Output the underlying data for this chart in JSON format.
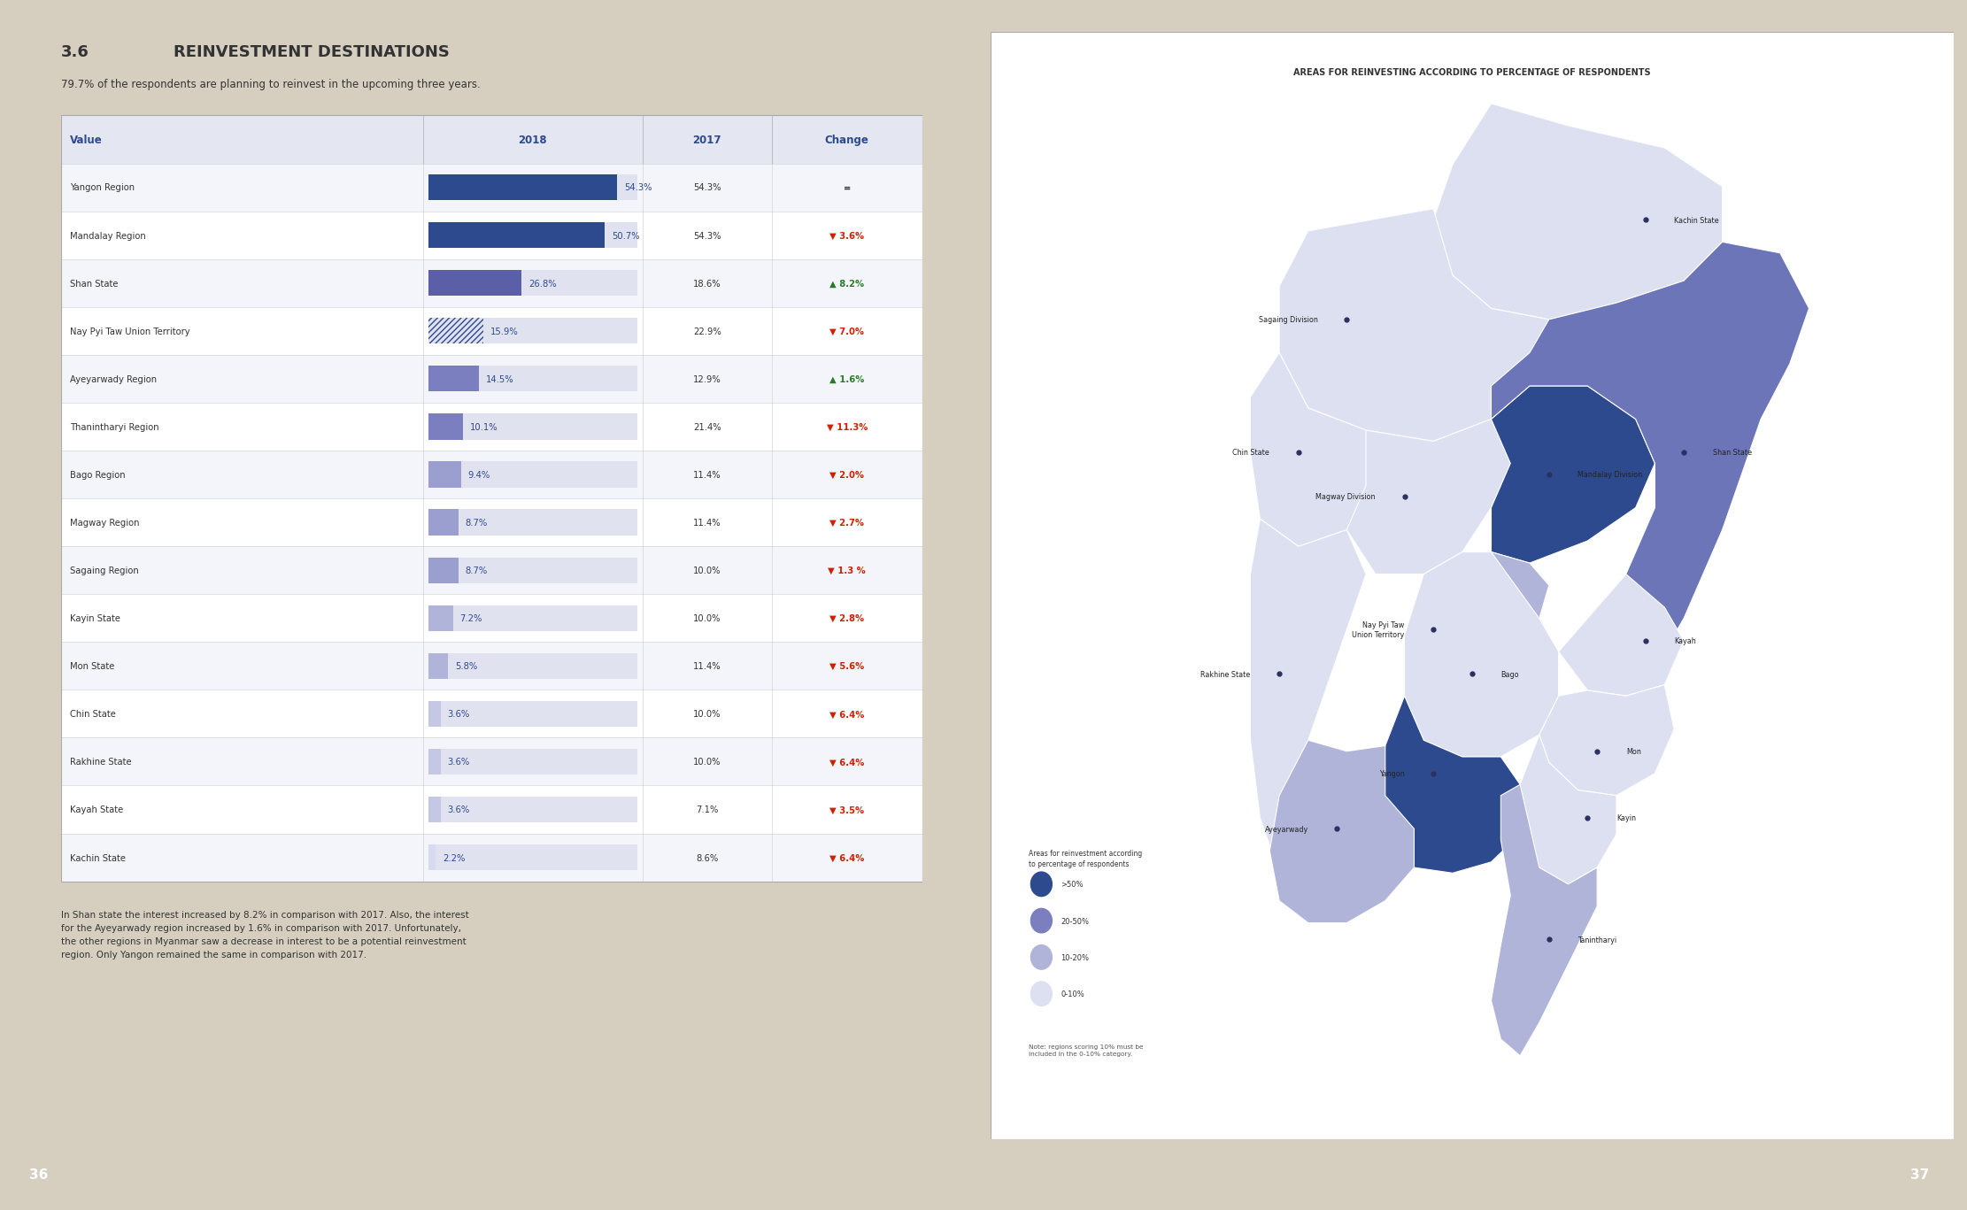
{
  "page_bg": "#d6cfc0",
  "paper_bg": "#ffffff",
  "section_num": "3.6",
  "section_title": "REINVESTMENT DESTINATIONS",
  "subtitle": "79.7% of the respondents are planning to reinvest in the upcoming three years.",
  "table_header": [
    "Value",
    "2018",
    "2017",
    "Change"
  ],
  "header_color": "#2e4a8e",
  "header_bg": "#e8eaf0",
  "table_rows": [
    [
      "Yangon Region",
      54.3,
      "54.3%",
      "=",
      "#2e4a8e",
      "equal"
    ],
    [
      "Mandalay Region",
      50.7,
      "54.3%",
      "▼ 3.6%",
      "#2e4a8e",
      "down"
    ],
    [
      "Shan State",
      26.8,
      "18.6%",
      "▲ 8.2%",
      "#5a5fa8",
      "up"
    ],
    [
      "Nay Pyi Taw Union Territory",
      15.9,
      "22.9%",
      "▼ 7.0%",
      "#2e4a8e",
      "down_hatched"
    ],
    [
      "Ayeyarwady Region",
      14.5,
      "12.9%",
      "▲ 1.6%",
      "#7b7fbf",
      "up"
    ],
    [
      "Thanintharyi Region",
      10.1,
      "21.4%",
      "▼ 11.3%",
      "#7b7fbf",
      "down"
    ],
    [
      "Bago Region",
      9.4,
      "11.4%",
      "▼ 2.0%",
      "#9b9fcf",
      "down"
    ],
    [
      "Magway Region",
      8.7,
      "11.4%",
      "▼ 2.7%",
      "#9b9fcf",
      "down"
    ],
    [
      "Sagaing Region",
      8.7,
      "10.0%",
      "▼ 1.3 %",
      "#9b9fcf",
      "down"
    ],
    [
      "Kayin State",
      7.2,
      "10.0%",
      "▼ 2.8%",
      "#b0b4d8",
      "down"
    ],
    [
      "Mon State",
      5.8,
      "11.4%",
      "▼ 5.6%",
      "#b0b4d8",
      "down"
    ],
    [
      "Chin State",
      3.6,
      "10.0%",
      "▼ 6.4%",
      "#c5c8e5",
      "down"
    ],
    [
      "Rakhine State",
      3.6,
      "10.0%",
      "▼ 6.4%",
      "#c5c8e5",
      "down"
    ],
    [
      "Kayah State",
      3.6,
      "7.1%",
      "▼ 3.5%",
      "#c5c8e5",
      "down"
    ],
    [
      "Kachin State",
      2.2,
      "8.6%",
      "▼ 6.4%",
      "#d8daf0",
      "down"
    ]
  ],
  "map_title": "AREAS FOR REINVESTING ACCORDING TO PERCENTAGE OF RESPONDENTS",
  "legend_items": [
    [
      ">50%",
      "#2e4a8e"
    ],
    [
      "20-50%",
      "#7b7fbf"
    ],
    [
      "10-20%",
      "#b0b4d8"
    ],
    [
      "0-10%",
      "#dce0f0"
    ]
  ],
  "map_note": "Note: regions scoring 10% must be\nincluded in the 0-10% category.",
  "page_numbers": [
    "36",
    "37"
  ],
  "page_number_bg": "#2e4a8e",
  "text_color_dark": "#333333",
  "text_color_blue": "#2e4a8e",
  "region_colors": {
    "Kachin": "#dce0f0",
    "Sagaing": "#dce0f0",
    "Chin": "#dce0f0",
    "Rakhine": "#dce0f0",
    "Magway": "#dce0f0",
    "Mandalay": "#2e4a8e",
    "Shan": "#6b75b8",
    "Kayah": "#dce0f0",
    "Kayin": "#dce0f0",
    "Mon": "#dce0f0",
    "Bago": "#dce0f0",
    "Yangon": "#2e4a8e",
    "Ayeyarwady": "#b0b4d8",
    "Naypyidaw": "#b0b4d8",
    "Tanintharyi": "#b0b4d8"
  }
}
